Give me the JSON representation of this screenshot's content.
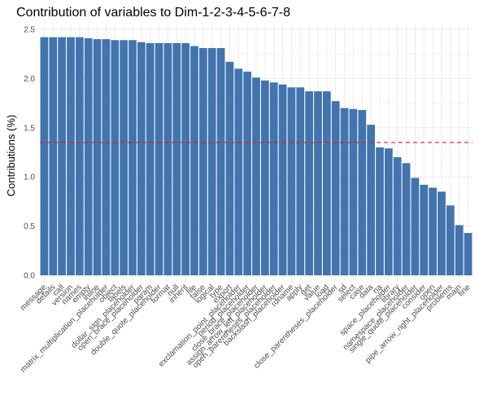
{
  "chart_data": {
    "type": "bar",
    "title": "Contribution of variables to Dim-1-2-3-4-5-6-7-8",
    "xlabel": "",
    "ylabel": "Contributions (%)",
    "ylim": [
      0,
      2.5
    ],
    "yticks": [
      "0.0",
      "0.5",
      "1.0",
      "1.5",
      "2.0",
      "2.5"
    ],
    "grid": true,
    "reference_line": 1.35,
    "colors": {
      "bar": "#4274ad",
      "reference": "#e41a1c",
      "grid": "#ebebeb",
      "tick_text": "#4d4d4d"
    },
    "categories": [
      "message",
      "details",
      "call",
      "version",
      "names",
      "empty",
      "inline",
      "matrix_multiplication_placeholder",
      "object",
      "labels",
      "dollar_sign_placeholder",
      "open_brace_placeholder",
      "param",
      "double_quote_placeholder",
      "format",
      "null",
      "inherit",
      "file",
      "false",
      "logical",
      "type",
      "export",
      "exclamation_point_placeholder",
      "period_placeholder",
      "close_brace_placeholder",
      "assign_arrow_left_placeholder",
      "open_parentheses_placeholder",
      "backslash_placeholder",
      "rdname",
      "apply",
      "get",
      "value",
      "load",
      "close_parentheses_placeholder",
      "sd",
      "select",
      "case",
      "data",
      "na",
      "space_placeholder",
      "library",
      "namespace_placeholder",
      "single_quote_placeholder",
      "consider",
      "open",
      "pipe_arrow_right_placeholder",
      "problems",
      "main",
      "fine"
    ],
    "values": [
      2.42,
      2.42,
      2.42,
      2.42,
      2.42,
      2.41,
      2.4,
      2.4,
      2.39,
      2.39,
      2.39,
      2.37,
      2.36,
      2.36,
      2.36,
      2.36,
      2.36,
      2.33,
      2.31,
      2.31,
      2.31,
      2.17,
      2.1,
      2.07,
      2.01,
      1.98,
      1.96,
      1.94,
      1.91,
      1.91,
      1.87,
      1.87,
      1.87,
      1.77,
      1.7,
      1.69,
      1.68,
      1.53,
      1.3,
      1.29,
      1.2,
      1.14,
      0.99,
      0.92,
      0.89,
      0.85,
      0.71,
      0.51,
      0.43
    ]
  }
}
